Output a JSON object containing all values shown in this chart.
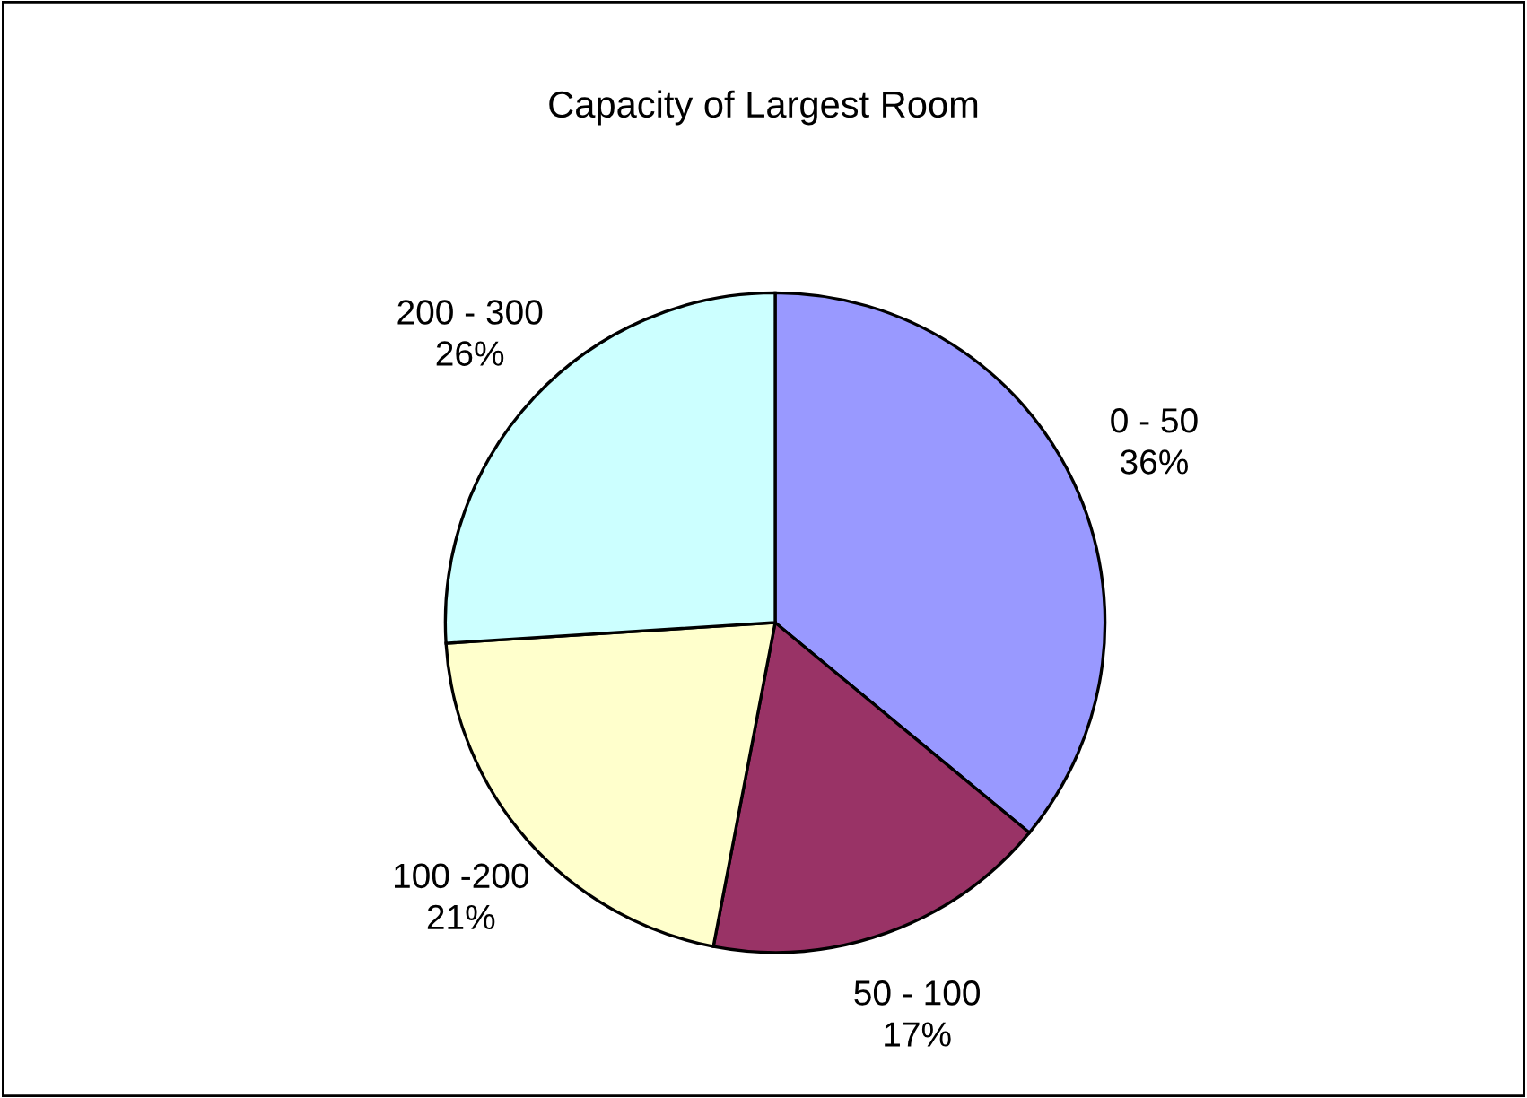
{
  "chart_data": {
    "type": "pie",
    "title": "Capacity of Largest Room",
    "categories": [
      "0 - 50",
      "50 - 100",
      "100 -200",
      "200 - 300"
    ],
    "values": [
      36,
      17,
      21,
      26
    ],
    "value_labels": [
      "36%",
      "17%",
      "21%",
      "26%"
    ],
    "colors": [
      "#9999ff",
      "#993366",
      "#ffffcc",
      "#ccffff"
    ],
    "legend": false
  }
}
